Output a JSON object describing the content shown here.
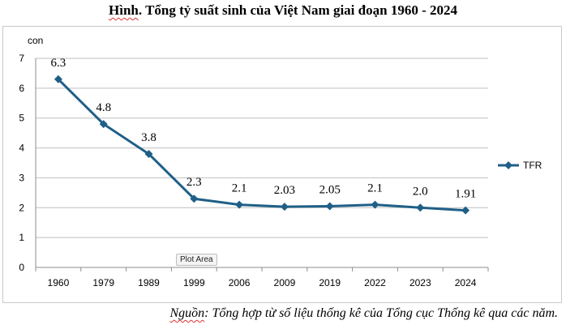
{
  "title": {
    "prefix": "Hình",
    "rest": ". Tổng tỷ suất sinh của Việt Nam giai đoạn 1960 - 2024"
  },
  "tooltip": "Plot Area",
  "source": {
    "prefix": "Nguồn",
    "rest": ": Tổng hợp từ số liệu thống kê của Tổng cục Thống kê qua các năm."
  },
  "colors": {
    "series": "#1f5f87",
    "grid": "#bfbfbf",
    "axis": "#8c8c8c"
  },
  "chart_data": {
    "type": "line",
    "title": "Hình. Tổng tỷ suất sinh của Việt Nam giai đoạn 1960 - 2024",
    "ylabel": "con",
    "xlabel": "",
    "categories": [
      "1960",
      "1979",
      "1989",
      "1999",
      "2006",
      "2009",
      "2019",
      "2022",
      "2023",
      "2024"
    ],
    "series": [
      {
        "name": "TFR",
        "values": [
          6.3,
          4.8,
          3.8,
          2.3,
          2.1,
          2.03,
          2.05,
          2.1,
          2.0,
          1.91
        ],
        "labels": [
          "6.3",
          "4.8",
          "3.8",
          "2.3",
          "2.1",
          "2.03",
          "2.05",
          "2.1",
          "2.0",
          "1.91"
        ],
        "marker": "diamond"
      }
    ],
    "ylim": [
      0,
      7
    ],
    "yticks": [
      "0",
      "1",
      "2",
      "3",
      "4",
      "5",
      "6",
      "7"
    ],
    "grid": true,
    "legend": "right"
  }
}
